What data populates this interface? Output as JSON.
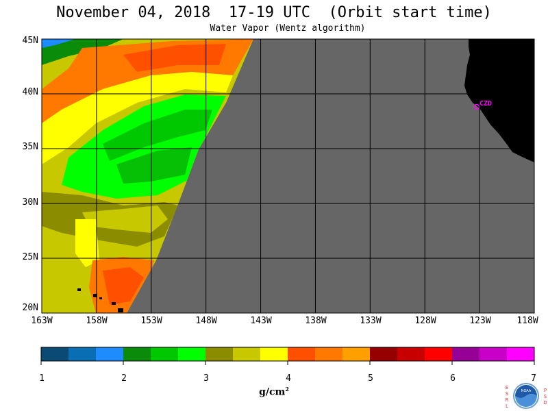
{
  "header": {
    "title": "November 04, 2018  17-19 UTC  (Orbit start time)",
    "subtitle": "Water Vapor (Wentz algorithm)"
  },
  "map": {
    "lat_labels": [
      "45N",
      "40N",
      "35N",
      "30N",
      "25N",
      "20N"
    ],
    "lon_labels": [
      "163W",
      "158W",
      "153W",
      "148W",
      "143W",
      "138W",
      "133W",
      "128W",
      "123W",
      "118W"
    ],
    "station_label": "CZD",
    "colors": {
      "no_data": "#666666",
      "land": "#000000",
      "grid": "#000000",
      "station": "#ff00ff"
    }
  },
  "colorbar": {
    "tick_labels": [
      "1",
      "2",
      "3",
      "4",
      "5",
      "6",
      "7"
    ],
    "colors": [
      "#0a4a73",
      "#0a6eb4",
      "#1e8cff",
      "#0a8c0a",
      "#00c800",
      "#00ff00",
      "#8c8c00",
      "#c8c800",
      "#ffff00",
      "#ff5000",
      "#ff7800",
      "#ffa000",
      "#960000",
      "#c80000",
      "#ff0000",
      "#960096",
      "#c800c8",
      "#ff00ff"
    ],
    "unit_base": "g/cm",
    "unit_exp": "2"
  },
  "logo": {
    "left_letters": [
      "E",
      "S",
      "R",
      "L"
    ],
    "right_letters": [
      "P",
      "S",
      "D"
    ],
    "center_text": "NOAA"
  }
}
